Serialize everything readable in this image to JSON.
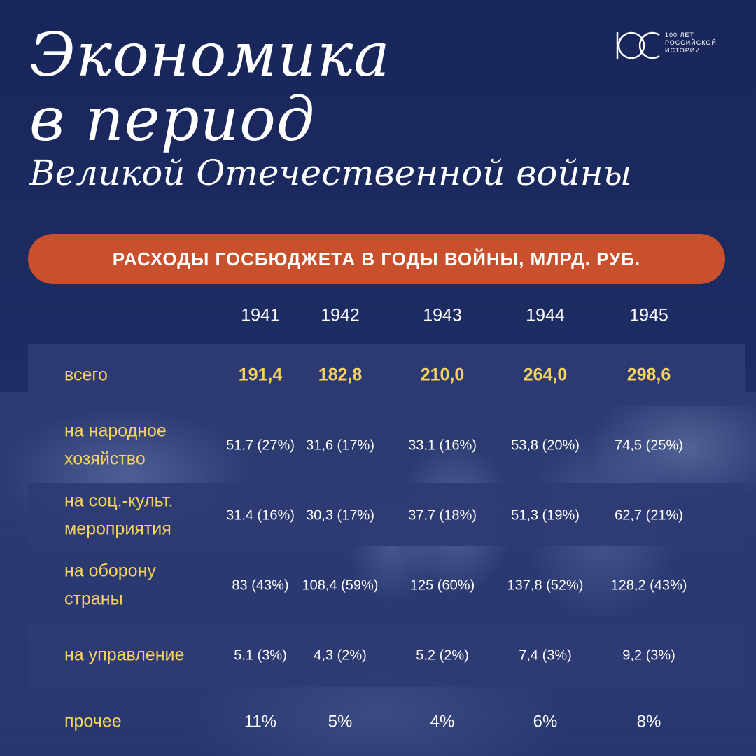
{
  "title": {
    "line1": "Экономика",
    "line2": "в период",
    "line3": "Великой Отечественной войны"
  },
  "logo": {
    "mark": "100",
    "text_lines": [
      "100 ЛЕТ",
      "РОССИЙСКОЙ",
      "ИСТОРИИ"
    ]
  },
  "chart_data": {
    "type": "table",
    "title": "РАСХОДЫ ГОСБЮДЖЕТА В ГОДЫ ВОЙНЫ, МЛРД. РУБ.",
    "columns": [
      "1941",
      "1942",
      "1943",
      "1944",
      "1945"
    ],
    "rows": [
      {
        "label": [
          "всего"
        ],
        "values": [
          "191,4",
          "182,8",
          "210,0",
          "264,0",
          "298,6"
        ],
        "numeric": [
          191.4,
          182.8,
          210.0,
          264.0,
          298.6
        ]
      },
      {
        "label": [
          "на народное",
          "хозяйство"
        ],
        "values": [
          "51,7 (27%)",
          "31,6 (17%)",
          "33,1 (16%)",
          "53,8 (20%)",
          "74,5 (25%)"
        ],
        "numeric": [
          51.7,
          31.6,
          33.1,
          53.8,
          74.5
        ],
        "percent": [
          27,
          17,
          16,
          20,
          25
        ]
      },
      {
        "label": [
          "на соц.-культ.",
          "мероприятия"
        ],
        "values": [
          "31,4 (16%)",
          "30,3 (17%)",
          "37,7 (18%)",
          "51,3 (19%)",
          "62,7 (21%)"
        ],
        "numeric": [
          31.4,
          30.3,
          37.7,
          51.3,
          62.7
        ],
        "percent": [
          16,
          17,
          18,
          19,
          21
        ]
      },
      {
        "label": [
          "на оборону",
          "страны"
        ],
        "values": [
          "83 (43%)",
          "108,4 (59%)",
          "125 (60%)",
          "137,8 (52%)",
          "128,2 (43%)"
        ],
        "numeric": [
          83,
          108.4,
          125,
          137.8,
          128.2
        ],
        "percent": [
          43,
          59,
          60,
          52,
          43
        ]
      },
      {
        "label": [
          "на управление"
        ],
        "values": [
          "5,1 (3%)",
          "4,3 (2%)",
          "5,2 (2%)",
          "7,4 (3%)",
          "9,2 (3%)"
        ],
        "numeric": [
          5.1,
          4.3,
          5.2,
          7.4,
          9.2
        ],
        "percent": [
          3,
          2,
          2,
          3,
          3
        ]
      },
      {
        "label": [
          "прочее"
        ],
        "values": [
          "11%",
          "5%",
          "4%",
          "6%",
          "8%"
        ],
        "percent": [
          11,
          5,
          4,
          6,
          8
        ]
      }
    ]
  },
  "colors": {
    "background": "#1c2a5e",
    "accent_pill": "#c9502c",
    "label_yellow": "#f6d35a",
    "band": "#2e3b73",
    "text": "#ffffff"
  }
}
